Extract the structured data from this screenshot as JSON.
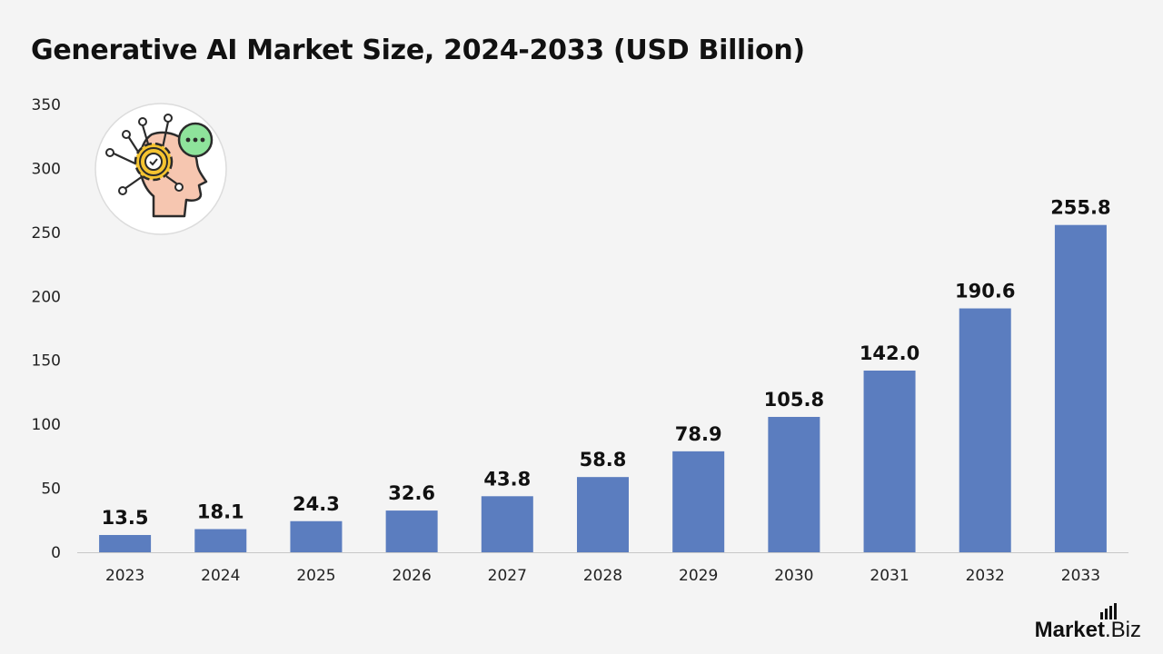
{
  "title": "Generative AI Market Size, 2024-2033 (USD Billion)",
  "brand": {
    "name_bold": "Market",
    "name_suffix": ".Biz"
  },
  "colors": {
    "bar": "#5b7dbf",
    "axis": "#c8c8c8",
    "text": "#111111"
  },
  "icon": "ai-brain-gear-icon",
  "chart_data": {
    "type": "bar",
    "title": "Generative AI Market Size, 2024-2033 (USD Billion)",
    "xlabel": "",
    "ylabel": "",
    "categories": [
      "2023",
      "2024",
      "2025",
      "2026",
      "2027",
      "2028",
      "2029",
      "2030",
      "2031",
      "2032",
      "2033"
    ],
    "values": [
      13.5,
      18.1,
      24.3,
      32.6,
      43.8,
      58.8,
      78.9,
      105.8,
      142.0,
      190.6,
      255.8
    ],
    "value_labels": [
      "13.5",
      "18.1",
      "24.3",
      "32.6",
      "43.8",
      "58.8",
      "78.9",
      "105.8",
      "142.0",
      "190.6",
      "255.8"
    ],
    "ylim": [
      0,
      350
    ],
    "yticks": [
      0,
      50,
      100,
      150,
      200,
      250,
      300,
      350
    ],
    "grid": false,
    "legend": "none"
  }
}
